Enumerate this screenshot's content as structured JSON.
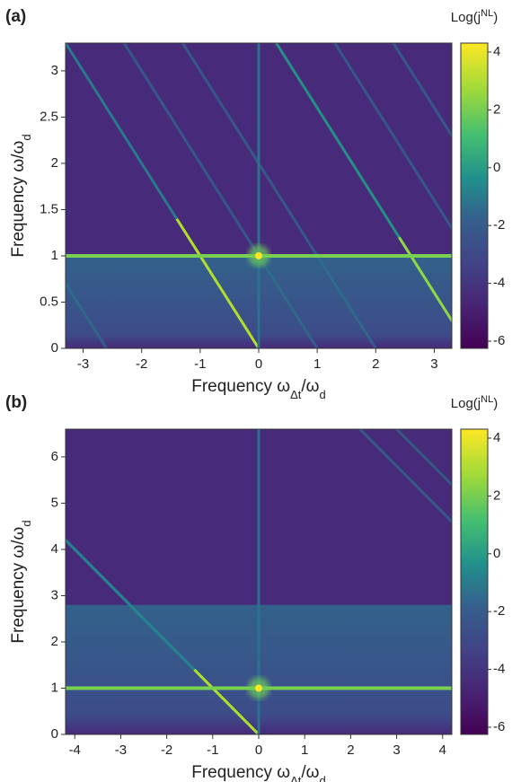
{
  "chart_data": [
    {
      "type": "heatmap",
      "panel_label": "(a)",
      "xlabel": [
        {
          "text": "Frequency ω"
        },
        {
          "sub": "Δt"
        },
        {
          "text": "/ω"
        },
        {
          "sub": "d"
        }
      ],
      "ylabel": [
        {
          "text": "Frequency ω/ω"
        },
        {
          "sub": "d"
        }
      ],
      "xlim": [
        -3.3,
        3.3
      ],
      "xticks": [
        -3,
        -2,
        -1,
        0,
        1,
        2,
        3
      ],
      "ylim": [
        0,
        3.3
      ],
      "yticks": [
        0,
        0.5,
        1,
        1.5,
        2,
        2.5,
        3
      ],
      "colorbar": {
        "label": [
          {
            "text": "Log(j"
          },
          {
            "sup": "NL"
          },
          {
            "text": ")"
          }
        ],
        "lim": [
          -6,
          4
        ],
        "ticks": [
          -6,
          -4,
          -2,
          0,
          2,
          4
        ]
      }
    },
    {
      "type": "heatmap",
      "panel_label": "(b)",
      "xlabel": [
        {
          "text": "Frequency ω"
        },
        {
          "sub": "Δt"
        },
        {
          "text": "/ω"
        },
        {
          "sub": "d"
        }
      ],
      "ylabel": [
        {
          "text": "Frequency ω/ω"
        },
        {
          "sub": "d"
        }
      ],
      "xlim": [
        -4.2,
        4.2
      ],
      "xticks": [
        -4,
        -3,
        -2,
        -1,
        0,
        1,
        2,
        3,
        4
      ],
      "ylim": [
        0,
        6.6
      ],
      "yticks": [
        0,
        1,
        2,
        3,
        4,
        5,
        6
      ],
      "colorbar": {
        "label": [
          {
            "text": "Log(j"
          },
          {
            "sup": "NL"
          },
          {
            "text": ")"
          }
        ],
        "lim": [
          -6,
          4
        ],
        "ticks": [
          -6,
          -4,
          -2,
          0,
          2,
          4
        ]
      }
    }
  ]
}
